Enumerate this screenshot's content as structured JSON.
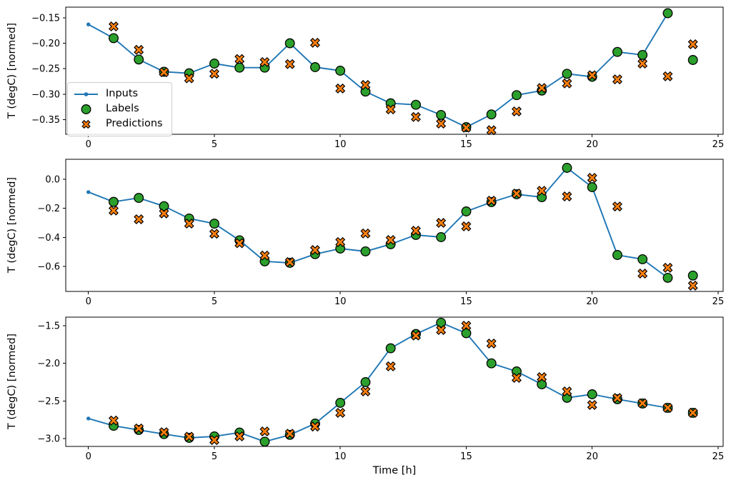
{
  "figure": {
    "background": "#ffffff",
    "xlabel": "Time [h]",
    "colors": {
      "inputs": "#1f77b4",
      "labels": "#2ca02c",
      "predictions": "#ff7f0e",
      "marker_edge": "#000000",
      "axis": "#000000",
      "legend_border": "#cccccc"
    },
    "legend": {
      "position": "lower-left of top subplot",
      "items": [
        "Inputs",
        "Labels",
        "Predictions"
      ]
    }
  },
  "chart_data": [
    {
      "type": "line",
      "subplot": "top",
      "ylabel": "T (degC) [normed]",
      "xlabel": "",
      "xlim": [
        -0.9,
        25.2
      ],
      "ylim": [
        -0.379,
        -0.129
      ],
      "xticks": [
        0,
        5,
        10,
        15,
        20,
        25
      ],
      "xtick_labels": [
        "0",
        "5",
        "10",
        "15",
        "20",
        "25"
      ],
      "yticks": [
        -0.15,
        -0.2,
        -0.25,
        -0.3,
        -0.35
      ],
      "ytick_labels": [
        "−0.15",
        "−0.20",
        "−0.25",
        "−0.30",
        "−0.35"
      ],
      "grid": false,
      "series": [
        {
          "name": "Inputs",
          "kind": "line-with-dots",
          "x": [
            0,
            1,
            2,
            3,
            4,
            5,
            6,
            7,
            8,
            9,
            10,
            11,
            12,
            13,
            14,
            15,
            16,
            17,
            18,
            19,
            20,
            21,
            22,
            23
          ],
          "y": [
            -0.163,
            -0.19,
            -0.232,
            -0.256,
            -0.259,
            -0.24,
            -0.248,
            -0.248,
            -0.2,
            -0.247,
            -0.254,
            -0.295,
            -0.318,
            -0.321,
            -0.341,
            -0.365,
            -0.34,
            -0.302,
            -0.293,
            -0.26,
            -0.266,
            -0.217,
            -0.223,
            -0.141
          ]
        },
        {
          "name": "Labels",
          "kind": "scatter-circle",
          "x": [
            1,
            2,
            3,
            4,
            5,
            6,
            7,
            8,
            9,
            10,
            11,
            12,
            13,
            14,
            15,
            16,
            17,
            18,
            19,
            20,
            21,
            22,
            23,
            24
          ],
          "y": [
            -0.19,
            -0.232,
            -0.256,
            -0.259,
            -0.24,
            -0.248,
            -0.248,
            -0.2,
            -0.247,
            -0.254,
            -0.295,
            -0.318,
            -0.321,
            -0.341,
            -0.365,
            -0.34,
            -0.302,
            -0.293,
            -0.26,
            -0.266,
            -0.217,
            -0.223,
            -0.141,
            -0.233
          ]
        },
        {
          "name": "Predictions",
          "kind": "scatter-x",
          "x": [
            1,
            2,
            3,
            4,
            5,
            6,
            7,
            8,
            9,
            10,
            11,
            12,
            13,
            14,
            15,
            16,
            17,
            18,
            19,
            20,
            21,
            22,
            23,
            24
          ],
          "y": [
            -0.167,
            -0.213,
            -0.257,
            -0.269,
            -0.26,
            -0.231,
            -0.237,
            -0.241,
            -0.199,
            -0.289,
            -0.282,
            -0.33,
            -0.345,
            -0.358,
            -0.366,
            -0.371,
            -0.334,
            -0.288,
            -0.279,
            -0.263,
            -0.271,
            -0.24,
            -0.265,
            -0.202
          ]
        }
      ]
    },
    {
      "type": "line",
      "subplot": "middle",
      "ylabel": "T (degC) [normed]",
      "xlabel": "",
      "xlim": [
        -0.9,
        25.2
      ],
      "ylim": [
        -0.772,
        0.138
      ],
      "xticks": [
        0,
        5,
        10,
        15,
        20,
        25
      ],
      "xtick_labels": [
        "0",
        "5",
        "10",
        "15",
        "20",
        "25"
      ],
      "yticks": [
        0.0,
        -0.2,
        -0.4,
        -0.6
      ],
      "ytick_labels": [
        "0.0",
        "−0.2",
        "−0.4",
        "−0.6"
      ],
      "grid": false,
      "series": [
        {
          "name": "Inputs",
          "kind": "line-with-dots",
          "x": [
            0,
            1,
            2,
            3,
            4,
            5,
            6,
            7,
            8,
            9,
            10,
            11,
            12,
            13,
            14,
            15,
            16,
            17,
            18,
            19,
            20,
            21,
            22,
            23
          ],
          "y": [
            -0.088,
            -0.155,
            -0.128,
            -0.185,
            -0.27,
            -0.305,
            -0.42,
            -0.565,
            -0.575,
            -0.515,
            -0.477,
            -0.496,
            -0.447,
            -0.383,
            -0.398,
            -0.221,
            -0.157,
            -0.103,
            -0.123,
            0.079,
            -0.054,
            -0.521,
            -0.55,
            -0.678
          ]
        },
        {
          "name": "Labels",
          "kind": "scatter-circle",
          "x": [
            1,
            2,
            3,
            4,
            5,
            6,
            7,
            8,
            9,
            10,
            11,
            12,
            13,
            14,
            15,
            16,
            17,
            18,
            19,
            20,
            21,
            22,
            23,
            24
          ],
          "y": [
            -0.155,
            -0.128,
            -0.185,
            -0.27,
            -0.305,
            -0.42,
            -0.565,
            -0.575,
            -0.515,
            -0.477,
            -0.496,
            -0.447,
            -0.383,
            -0.398,
            -0.221,
            -0.157,
            -0.103,
            -0.123,
            0.079,
            -0.054,
            -0.521,
            -0.55,
            -0.678,
            -0.663
          ]
        },
        {
          "name": "Predictions",
          "kind": "scatter-x",
          "x": [
            1,
            2,
            3,
            4,
            5,
            6,
            7,
            8,
            9,
            10,
            11,
            12,
            13,
            14,
            15,
            16,
            17,
            18,
            19,
            20,
            21,
            22,
            23,
            24
          ],
          "y": [
            -0.215,
            -0.275,
            -0.235,
            -0.305,
            -0.375,
            -0.44,
            -0.525,
            -0.57,
            -0.487,
            -0.432,
            -0.373,
            -0.418,
            -0.354,
            -0.3,
            -0.324,
            -0.147,
            -0.098,
            -0.079,
            -0.118,
            0.01,
            -0.187,
            -0.649,
            -0.609,
            -0.732
          ]
        }
      ]
    },
    {
      "type": "line",
      "subplot": "bottom",
      "ylabel": "T (degC) [normed]",
      "xlabel": "Time [h]",
      "xlim": [
        -0.9,
        25.2
      ],
      "ylim": [
        -3.104,
        -1.386
      ],
      "xticks": [
        0,
        5,
        10,
        15,
        20,
        25
      ],
      "xtick_labels": [
        "0",
        "5",
        "10",
        "15",
        "20",
        "25"
      ],
      "yticks": [
        -1.5,
        -2.0,
        -2.5,
        -3.0
      ],
      "ytick_labels": [
        "−1.5",
        "−2.0",
        "−2.5",
        "−3.0"
      ],
      "grid": false,
      "series": [
        {
          "name": "Inputs",
          "kind": "line-with-dots",
          "x": [
            0,
            1,
            2,
            3,
            4,
            5,
            6,
            7,
            8,
            9,
            10,
            11,
            12,
            13,
            14,
            15,
            16,
            17,
            18,
            19,
            20,
            21,
            22,
            23
          ],
          "y": [
            -2.733,
            -2.83,
            -2.885,
            -2.94,
            -2.99,
            -2.97,
            -2.92,
            -3.04,
            -2.95,
            -2.8,
            -2.525,
            -2.25,
            -1.8,
            -1.61,
            -1.46,
            -1.6,
            -2.0,
            -2.107,
            -2.278,
            -2.458,
            -2.411,
            -2.477,
            -2.534,
            -2.591
          ]
        },
        {
          "name": "Labels",
          "kind": "scatter-circle",
          "x": [
            1,
            2,
            3,
            4,
            5,
            6,
            7,
            8,
            9,
            10,
            11,
            12,
            13,
            14,
            15,
            16,
            17,
            18,
            19,
            20,
            21,
            22,
            23,
            24
          ],
          "y": [
            -2.83,
            -2.885,
            -2.94,
            -2.99,
            -2.97,
            -2.92,
            -3.04,
            -2.95,
            -2.8,
            -2.525,
            -2.25,
            -1.8,
            -1.61,
            -1.46,
            -1.6,
            -2.0,
            -2.107,
            -2.278,
            -2.458,
            -2.411,
            -2.477,
            -2.534,
            -2.591,
            -2.657
          ]
        },
        {
          "name": "Predictions",
          "kind": "scatter-x",
          "x": [
            1,
            2,
            3,
            4,
            5,
            6,
            7,
            8,
            9,
            10,
            11,
            12,
            13,
            14,
            15,
            16,
            17,
            18,
            19,
            20,
            21,
            22,
            23,
            24
          ],
          "y": [
            -2.76,
            -2.865,
            -2.915,
            -2.975,
            -3.02,
            -2.97,
            -2.905,
            -2.935,
            -2.84,
            -2.658,
            -2.373,
            -2.04,
            -1.63,
            -1.557,
            -1.5,
            -1.737,
            -2.193,
            -2.183,
            -2.373,
            -2.553,
            -2.46,
            -2.53,
            -2.591,
            -2.657
          ]
        }
      ]
    }
  ]
}
